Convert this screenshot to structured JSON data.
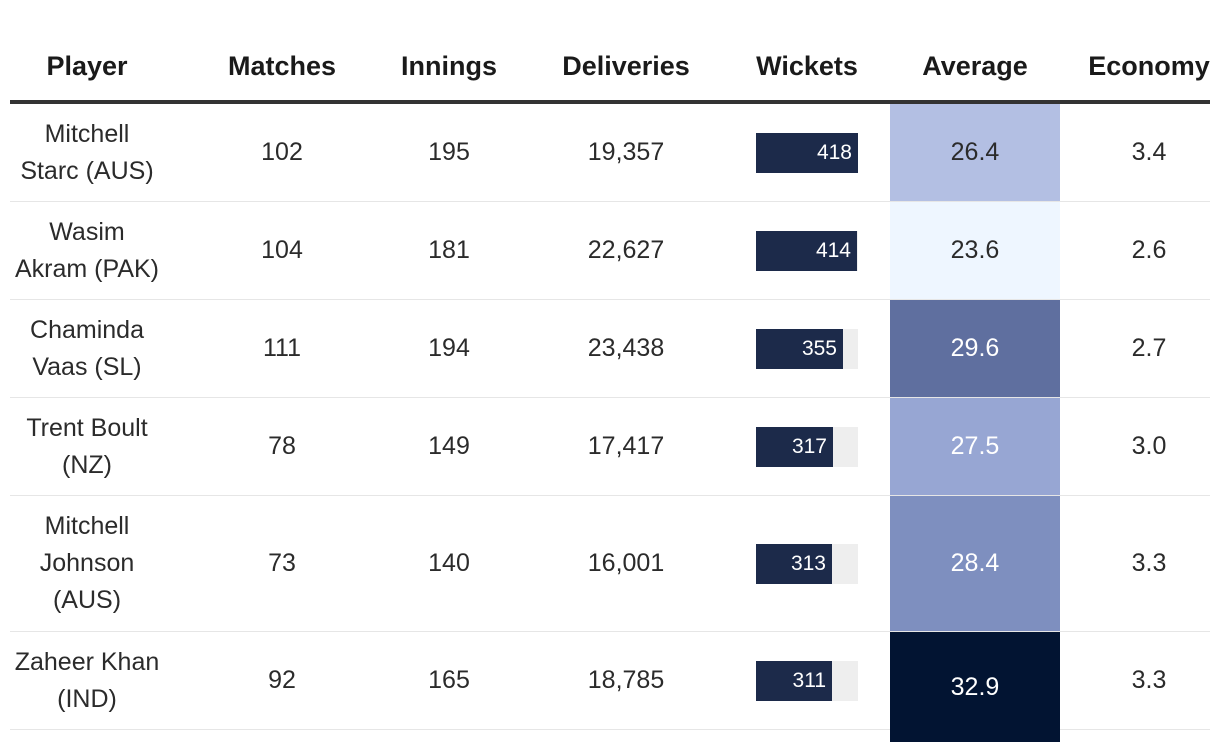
{
  "chart_data": {
    "type": "table",
    "columns": [
      "Player",
      "Matches",
      "Innings",
      "Deliveries",
      "Wickets",
      "Average",
      "Economy"
    ],
    "wickets_max": 418,
    "rows": [
      {
        "player": "Mitchell Starc (AUS)",
        "player_lines": [
          "Mitchell",
          "Starc (AUS)"
        ],
        "matches": "102",
        "innings": "195",
        "deliveries": "19,357",
        "wickets": 418,
        "wickets_label": "418",
        "average": "26.4",
        "average_bg": "#b3bfe3",
        "average_fg": "#2b2b2b",
        "economy": "3.4"
      },
      {
        "player": "Wasim Akram (PAK)",
        "player_lines": [
          "Wasim",
          "Akram (PAK)"
        ],
        "matches": "104",
        "innings": "181",
        "deliveries": "22,627",
        "wickets": 414,
        "wickets_label": "414",
        "average": "23.6",
        "average_bg": "#eef6ff",
        "average_fg": "#2b2b2b",
        "economy": "2.6"
      },
      {
        "player": "Chaminda Vaas (SL)",
        "player_lines": [
          "Chaminda",
          "Vaas (SL)"
        ],
        "matches": "111",
        "innings": "194",
        "deliveries": "23,438",
        "wickets": 355,
        "wickets_label": "355",
        "average": "29.6",
        "average_bg": "#5f6f9f",
        "average_fg": "#ffffff",
        "economy": "2.7"
      },
      {
        "player": "Trent Boult (NZ)",
        "player_lines": [
          "Trent Boult",
          "(NZ)"
        ],
        "matches": "78",
        "innings": "149",
        "deliveries": "17,417",
        "wickets": 317,
        "wickets_label": "317",
        "average": "27.5",
        "average_bg": "#97a6d3",
        "average_fg": "#ffffff",
        "economy": "3.0"
      },
      {
        "player": "Mitchell Johnson (AUS)",
        "player_lines": [
          "Mitchell",
          "Johnson",
          "(AUS)"
        ],
        "matches": "73",
        "innings": "140",
        "deliveries": "16,001",
        "wickets": 313,
        "wickets_label": "313",
        "average": "28.4",
        "average_bg": "#7e8fbf",
        "average_fg": "#ffffff",
        "economy": "3.3"
      },
      {
        "player": "Zaheer Khan (IND)",
        "player_lines": [
          "Zaheer Khan",
          "(IND)"
        ],
        "matches": "92",
        "innings": "165",
        "deliveries": "18,785",
        "wickets": 311,
        "wickets_label": "311",
        "average": "32.9",
        "average_bg": "#021432",
        "average_fg": "#ffffff",
        "economy": "3.3"
      }
    ]
  }
}
